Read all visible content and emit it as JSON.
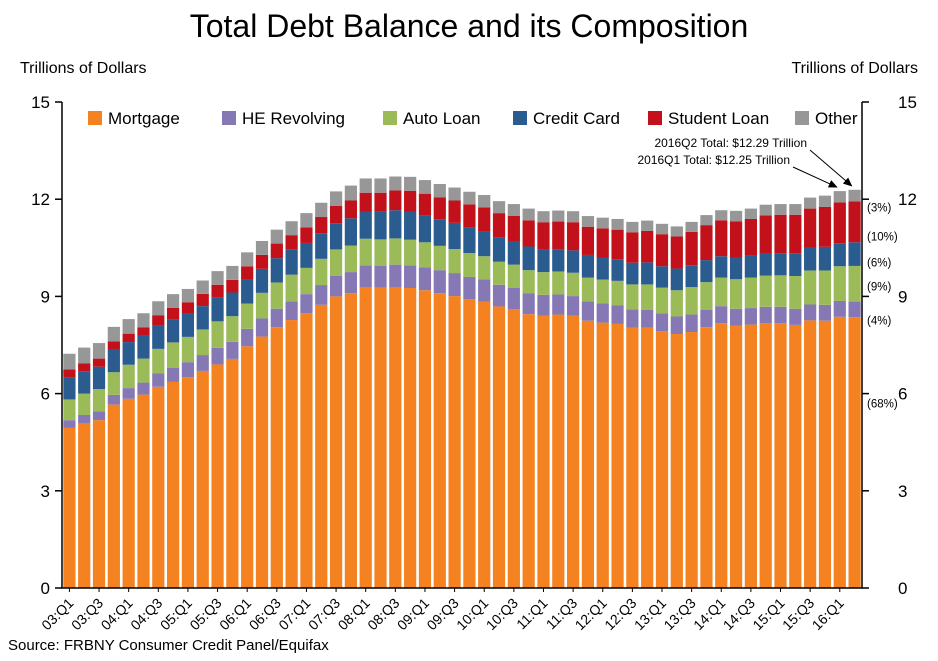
{
  "chart_data": {
    "type": "bar",
    "stacked": true,
    "title": "Total Debt Balance and its Composition",
    "ylabel_left": "Trillions of Dollars",
    "ylabel_right": "Trillions of Dollars",
    "source": "Source: FRBNY Consumer Credit Panel/Equifax",
    "ylim": [
      0,
      15
    ],
    "yticks": [
      0,
      3,
      6,
      9,
      12,
      15
    ],
    "grid": false,
    "legend_position": "top-inside",
    "categories": [
      "03:Q1",
      "03:Q2",
      "03:Q3",
      "03:Q4",
      "04:Q1",
      "04:Q2",
      "04:Q3",
      "04:Q4",
      "05:Q1",
      "05:Q2",
      "05:Q3",
      "05:Q4",
      "06:Q1",
      "06:Q2",
      "06:Q3",
      "06:Q4",
      "07:Q1",
      "07:Q2",
      "07:Q3",
      "07:Q4",
      "08:Q1",
      "08:Q2",
      "08:Q3",
      "08:Q4",
      "09:Q1",
      "09:Q2",
      "09:Q3",
      "09:Q4",
      "10:Q1",
      "10:Q2",
      "10:Q3",
      "10:Q4",
      "11:Q1",
      "11:Q2",
      "11:Q3",
      "11:Q4",
      "12:Q1",
      "12:Q2",
      "12:Q3",
      "12:Q4",
      "13:Q1",
      "13:Q2",
      "13:Q3",
      "13:Q4",
      "14:Q1",
      "14:Q2",
      "14:Q3",
      "14:Q4",
      "15:Q1",
      "15:Q2",
      "15:Q3",
      "15:Q4",
      "16:Q1",
      "16:Q2"
    ],
    "x_tick_labels": [
      "03:Q1",
      "03:Q3",
      "04:Q1",
      "04:Q3",
      "05:Q1",
      "05:Q3",
      "06:Q1",
      "06:Q3",
      "07:Q1",
      "07:Q3",
      "08:Q1",
      "08:Q3",
      "09:Q1",
      "09:Q3",
      "10:Q1",
      "10:Q3",
      "11:Q1",
      "11:Q3",
      "12:Q1",
      "12:Q3",
      "13:Q1",
      "13:Q3",
      "14:Q1",
      "14:Q3",
      "15:Q1",
      "15:Q3",
      "16:Q1"
    ],
    "series": [
      {
        "name": "Mortgage",
        "color": "#F58220",
        "values": [
          4.94,
          5.08,
          5.18,
          5.66,
          5.84,
          5.97,
          6.21,
          6.36,
          6.51,
          6.7,
          6.9,
          7.07,
          7.46,
          7.76,
          8.05,
          8.27,
          8.48,
          8.74,
          9.0,
          9.1,
          9.29,
          9.27,
          9.29,
          9.26,
          9.19,
          9.1,
          9.01,
          8.91,
          8.84,
          8.69,
          8.61,
          8.45,
          8.41,
          8.44,
          8.4,
          8.25,
          8.19,
          8.15,
          8.03,
          8.03,
          7.93,
          7.84,
          7.9,
          8.05,
          8.17,
          8.1,
          8.13,
          8.17,
          8.17,
          8.12,
          8.26,
          8.25,
          8.37,
          8.36
        ]
      },
      {
        "name": "HE Revolving",
        "color": "#8678B5",
        "values": [
          0.24,
          0.26,
          0.27,
          0.3,
          0.33,
          0.37,
          0.41,
          0.44,
          0.46,
          0.49,
          0.51,
          0.53,
          0.54,
          0.56,
          0.57,
          0.58,
          0.59,
          0.61,
          0.63,
          0.65,
          0.67,
          0.68,
          0.69,
          0.7,
          0.71,
          0.71,
          0.71,
          0.69,
          0.68,
          0.67,
          0.66,
          0.65,
          0.64,
          0.62,
          0.61,
          0.6,
          0.59,
          0.58,
          0.57,
          0.56,
          0.55,
          0.54,
          0.54,
          0.53,
          0.53,
          0.52,
          0.51,
          0.51,
          0.51,
          0.5,
          0.49,
          0.49,
          0.49,
          0.48
        ]
      },
      {
        "name": "Auto Loan",
        "color": "#9BBB59",
        "values": [
          0.64,
          0.66,
          0.69,
          0.7,
          0.72,
          0.74,
          0.76,
          0.78,
          0.78,
          0.79,
          0.82,
          0.79,
          0.78,
          0.79,
          0.81,
          0.82,
          0.81,
          0.81,
          0.82,
          0.82,
          0.82,
          0.81,
          0.81,
          0.79,
          0.77,
          0.75,
          0.74,
          0.74,
          0.72,
          0.71,
          0.71,
          0.71,
          0.7,
          0.71,
          0.72,
          0.73,
          0.74,
          0.75,
          0.77,
          0.78,
          0.79,
          0.81,
          0.85,
          0.86,
          0.88,
          0.91,
          0.94,
          0.96,
          0.97,
          1.01,
          1.05,
          1.06,
          1.07,
          1.1
        ]
      },
      {
        "name": "Credit Card",
        "color": "#2B5C90",
        "values": [
          0.69,
          0.69,
          0.69,
          0.7,
          0.7,
          0.7,
          0.71,
          0.72,
          0.71,
          0.72,
          0.74,
          0.73,
          0.73,
          0.74,
          0.75,
          0.77,
          0.77,
          0.79,
          0.81,
          0.84,
          0.84,
          0.85,
          0.87,
          0.87,
          0.84,
          0.82,
          0.81,
          0.79,
          0.76,
          0.74,
          0.73,
          0.73,
          0.7,
          0.69,
          0.69,
          0.7,
          0.68,
          0.67,
          0.67,
          0.68,
          0.66,
          0.67,
          0.67,
          0.68,
          0.66,
          0.67,
          0.68,
          0.7,
          0.68,
          0.7,
          0.71,
          0.73,
          0.71,
          0.73
        ]
      },
      {
        "name": "Student Loan",
        "color": "#C2111B",
        "values": [
          0.24,
          0.24,
          0.25,
          0.25,
          0.26,
          0.26,
          0.33,
          0.35,
          0.36,
          0.38,
          0.39,
          0.39,
          0.42,
          0.43,
          0.45,
          0.45,
          0.48,
          0.5,
          0.53,
          0.55,
          0.58,
          0.59,
          0.61,
          0.64,
          0.66,
          0.68,
          0.69,
          0.71,
          0.75,
          0.76,
          0.78,
          0.81,
          0.84,
          0.85,
          0.87,
          0.87,
          0.9,
          0.91,
          0.94,
          0.97,
          0.99,
          0.99,
          1.03,
          1.08,
          1.11,
          1.12,
          1.13,
          1.16,
          1.19,
          1.19,
          1.2,
          1.23,
          1.26,
          1.26
        ]
      },
      {
        "name": "Other",
        "color": "#979797",
        "values": [
          0.48,
          0.49,
          0.48,
          0.45,
          0.45,
          0.44,
          0.43,
          0.42,
          0.41,
          0.41,
          0.42,
          0.43,
          0.43,
          0.43,
          0.43,
          0.43,
          0.44,
          0.44,
          0.45,
          0.46,
          0.44,
          0.44,
          0.43,
          0.43,
          0.42,
          0.41,
          0.4,
          0.39,
          0.38,
          0.37,
          0.36,
          0.36,
          0.34,
          0.34,
          0.34,
          0.33,
          0.33,
          0.33,
          0.32,
          0.32,
          0.32,
          0.31,
          0.31,
          0.31,
          0.31,
          0.32,
          0.32,
          0.33,
          0.33,
          0.33,
          0.34,
          0.35,
          0.35,
          0.36
        ]
      }
    ],
    "annotations": [
      {
        "text": "2016Q2 Total: $12.29 Trillion",
        "points_to": "16:Q2"
      },
      {
        "text": "2016Q1 Total: $12.25 Trillion",
        "points_to": "16:Q1"
      }
    ],
    "segment_share_labels": [
      {
        "series": "Other",
        "text": "(3%)",
        "level": 11.75
      },
      {
        "series": "Student Loan",
        "text": "(10%)",
        "level": 10.85
      },
      {
        "series": "Credit Card",
        "text": "(6%)",
        "level": 10.05
      },
      {
        "series": "Auto Loan",
        "text": "(9%)",
        "level": 9.3
      },
      {
        "series": "HE Revolving",
        "text": "(4%)",
        "level": 8.25
      },
      {
        "series": "Mortgage",
        "text": "(68%)",
        "level": 5.7
      }
    ]
  }
}
